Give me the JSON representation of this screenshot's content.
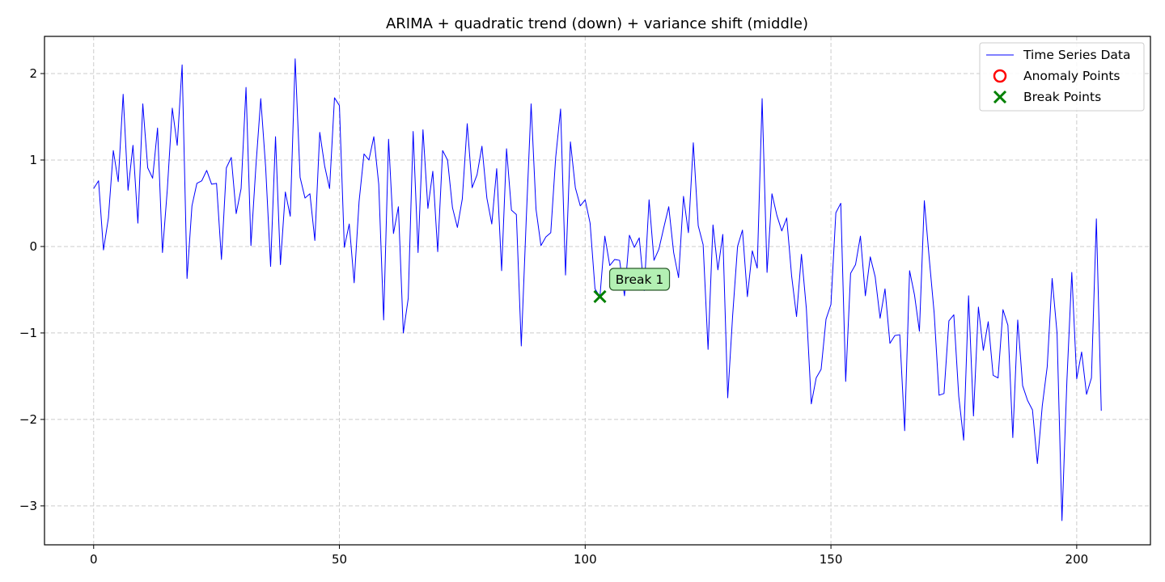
{
  "chart_data": {
    "type": "line",
    "title": "ARIMA + quadratic trend (down) + variance shift (middle)",
    "xlabel": "",
    "ylabel": "",
    "xlim": [
      -10,
      215
    ],
    "ylim": [
      -3.45,
      2.43
    ],
    "x_ticks": [
      0,
      50,
      100,
      150,
      200
    ],
    "y_ticks": [
      -3,
      -2,
      -1,
      0,
      1,
      2
    ],
    "x_tick_labels": [
      "0",
      "50",
      "100",
      "150",
      "200"
    ],
    "y_tick_labels": [
      "−3",
      "−2",
      "−1",
      "0",
      "1",
      "2"
    ],
    "grid": true,
    "legend_position": "top-right",
    "legend": [
      "Time Series Data",
      "Anomaly Points",
      "Break Points"
    ],
    "colors": {
      "series": "#0000ff",
      "anomaly": "#ff0000",
      "break": "#008000",
      "annotation_fill": "#b3f0b3"
    },
    "series": [
      {
        "name": "Time Series Data",
        "x_start": 0,
        "values": [
          0.67,
          0.76,
          -0.04,
          0.33,
          1.11,
          0.75,
          1.76,
          0.65,
          1.17,
          0.27,
          1.65,
          0.91,
          0.79,
          1.37,
          -0.07,
          0.67,
          1.6,
          1.17,
          2.1,
          -0.37,
          0.47,
          0.73,
          0.76,
          0.88,
          0.72,
          0.73,
          -0.15,
          0.91,
          1.03,
          0.38,
          0.67,
          1.84,
          0.01,
          0.92,
          1.71,
          0.91,
          -0.23,
          1.27,
          -0.21,
          0.63,
          0.35,
          2.17,
          0.8,
          0.56,
          0.61,
          0.07,
          1.32,
          0.93,
          0.67,
          1.72,
          1.63,
          -0.01,
          0.26,
          -0.42,
          0.52,
          1.07,
          1.0,
          1.27,
          0.72,
          -0.85,
          1.24,
          0.15,
          0.46,
          -1.0,
          -0.6,
          1.33,
          -0.07,
          1.35,
          0.44,
          0.87,
          -0.06,
          1.11,
          1.0,
          0.45,
          0.22,
          0.55,
          1.42,
          0.68,
          0.83,
          1.16,
          0.56,
          0.26,
          0.9,
          -0.28,
          1.13,
          0.42,
          0.37,
          -1.15,
          0.3,
          1.65,
          0.43,
          0.01,
          0.11,
          0.16,
          1.03,
          1.59,
          -0.33,
          1.21,
          0.68,
          0.47,
          0.54,
          0.27,
          -0.49,
          -0.58,
          0.12,
          -0.22,
          -0.15,
          -0.16,
          -0.57,
          0.13,
          -0.01,
          0.1,
          -0.51,
          0.54,
          -0.16,
          -0.03,
          0.22,
          0.46,
          -0.07,
          -0.36,
          0.58,
          0.16,
          1.2,
          0.24,
          0.02,
          -1.19,
          0.25,
          -0.27,
          0.14,
          -1.75,
          -0.8,
          0.0,
          0.19,
          -0.58,
          -0.05,
          -0.25,
          1.71,
          -0.3,
          0.61,
          0.36,
          0.18,
          0.33,
          -0.34,
          -0.81,
          -0.09,
          -0.72,
          -1.82,
          -1.52,
          -1.42,
          -0.84,
          -0.67,
          0.39,
          0.5,
          -1.56,
          -0.31,
          -0.21,
          0.12,
          -0.57,
          -0.12,
          -0.35,
          -0.83,
          -0.49,
          -1.12,
          -1.03,
          -1.02,
          -2.13,
          -0.28,
          -0.56,
          -0.98,
          0.53,
          -0.14,
          -0.77,
          -1.72,
          -1.7,
          -0.86,
          -0.79,
          -1.73,
          -2.24,
          -0.57,
          -1.96,
          -0.7,
          -1.2,
          -0.87,
          -1.49,
          -1.52,
          -0.73,
          -0.91,
          -2.21,
          -0.85,
          -1.61,
          -1.78,
          -1.89,
          -2.51,
          -1.84,
          -1.39,
          -0.37,
          -1.0,
          -3.17,
          -1.56,
          -0.3,
          -1.53,
          -1.22,
          -1.71,
          -1.52,
          0.32,
          -1.9
        ]
      }
    ],
    "anomalies": [],
    "breaks": [
      {
        "x": 103,
        "y": -0.58,
        "label": "Break 1"
      }
    ]
  }
}
